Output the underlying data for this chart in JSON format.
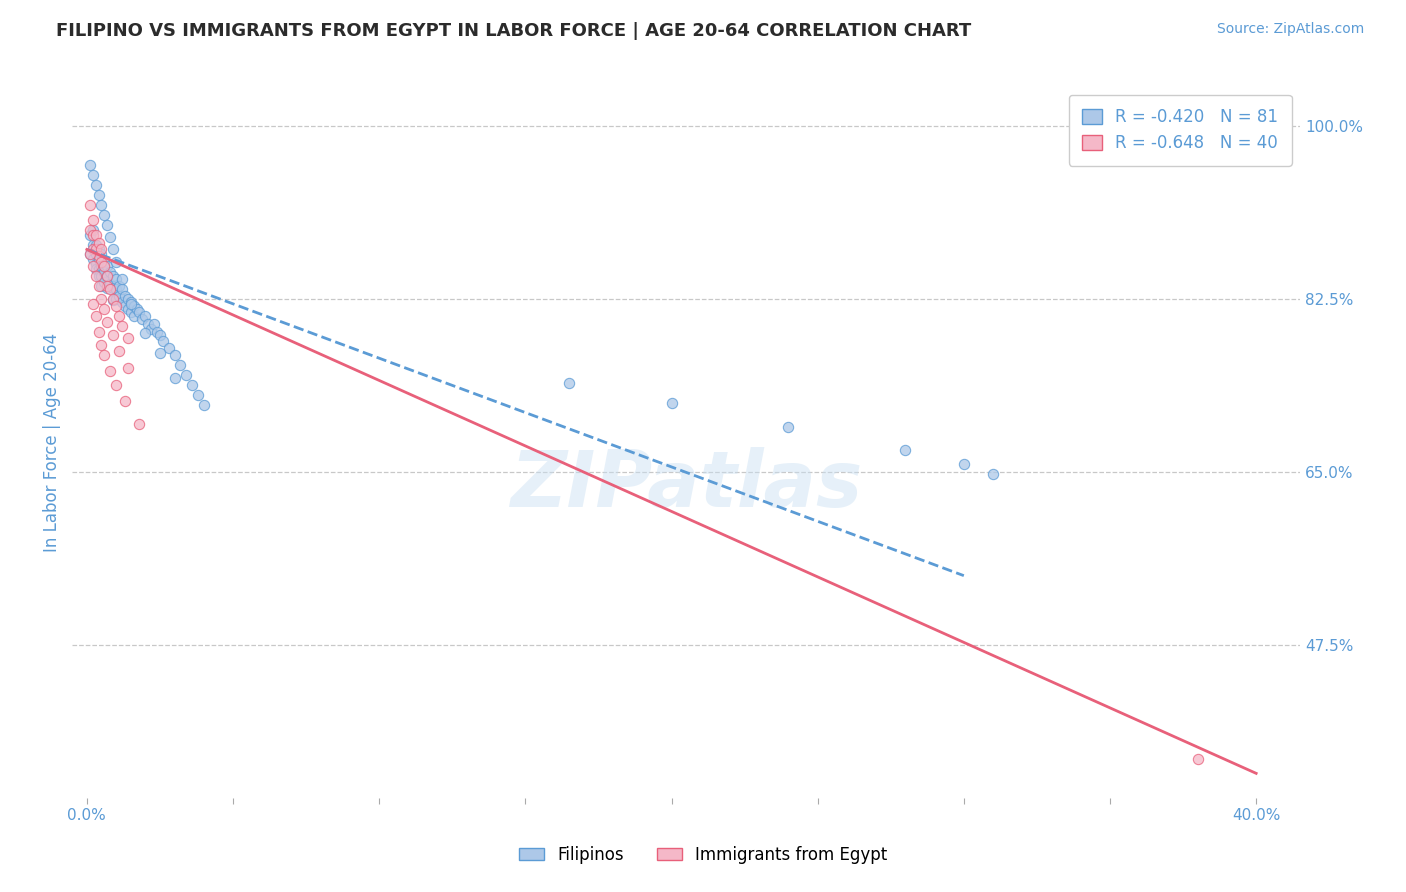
{
  "title": "FILIPINO VS IMMIGRANTS FROM EGYPT IN LABOR FORCE | AGE 20-64 CORRELATION CHART",
  "source": "Source: ZipAtlas.com",
  "ylabel": "In Labor Force | Age 20-64",
  "ylabel_ticks": [
    0.475,
    0.65,
    0.825,
    1.0
  ],
  "ylabel_labels": [
    "47.5%",
    "65.0%",
    "82.5%",
    "100.0%"
  ],
  "xlabel_ticks": [
    0.0,
    0.05,
    0.1,
    0.15,
    0.2,
    0.25,
    0.3,
    0.35,
    0.4
  ],
  "xlabel_labels": [
    "0.0%",
    "",
    "",
    "",
    "",
    "",
    "",
    "",
    "40.0%"
  ],
  "ylim": [
    0.32,
    1.04
  ],
  "xlim": [
    -0.005,
    0.415
  ],
  "watermark": "ZIPatlas",
  "title_color": "#2b2b2b",
  "axis_label_color": "#5b9bd5",
  "tick_color": "#5b9bd5",
  "grid_color": "#c8c8c8",
  "filipinos": {
    "R": -0.42,
    "N": 81,
    "color": "#adc8e8",
    "edge_color": "#5b9bd5",
    "line_color": "#5b9bd5",
    "line_style": "--",
    "label": "Filipinos",
    "line_x0": 0.0,
    "line_y0": 0.875,
    "line_x1": 0.3,
    "line_y1": 0.545,
    "x": [
      0.001,
      0.001,
      0.002,
      0.002,
      0.002,
      0.003,
      0.003,
      0.003,
      0.003,
      0.004,
      0.004,
      0.004,
      0.004,
      0.005,
      0.005,
      0.005,
      0.005,
      0.006,
      0.006,
      0.006,
      0.007,
      0.007,
      0.007,
      0.008,
      0.008,
      0.009,
      0.009,
      0.009,
      0.01,
      0.01,
      0.01,
      0.011,
      0.011,
      0.012,
      0.012,
      0.013,
      0.013,
      0.014,
      0.014,
      0.015,
      0.015,
      0.016,
      0.016,
      0.017,
      0.018,
      0.019,
      0.02,
      0.021,
      0.022,
      0.023,
      0.024,
      0.025,
      0.026,
      0.028,
      0.03,
      0.032,
      0.034,
      0.036,
      0.038,
      0.04,
      0.001,
      0.002,
      0.003,
      0.004,
      0.005,
      0.006,
      0.007,
      0.008,
      0.009,
      0.01,
      0.012,
      0.015,
      0.02,
      0.025,
      0.03,
      0.165,
      0.2,
      0.24,
      0.28,
      0.3,
      0.31
    ],
    "y": [
      0.89,
      0.87,
      0.895,
      0.88,
      0.865,
      0.88,
      0.87,
      0.86,
      0.855,
      0.875,
      0.865,
      0.855,
      0.848,
      0.87,
      0.858,
      0.848,
      0.838,
      0.862,
      0.852,
      0.842,
      0.858,
      0.848,
      0.836,
      0.852,
      0.84,
      0.848,
      0.836,
      0.824,
      0.845,
      0.835,
      0.825,
      0.838,
      0.828,
      0.835,
      0.822,
      0.828,
      0.818,
      0.825,
      0.815,
      0.822,
      0.812,
      0.818,
      0.808,
      0.815,
      0.812,
      0.805,
      0.808,
      0.8,
      0.795,
      0.8,
      0.792,
      0.788,
      0.782,
      0.775,
      0.768,
      0.758,
      0.748,
      0.738,
      0.728,
      0.718,
      0.96,
      0.95,
      0.94,
      0.93,
      0.92,
      0.91,
      0.9,
      0.888,
      0.875,
      0.862,
      0.845,
      0.82,
      0.79,
      0.77,
      0.745,
      0.74,
      0.72,
      0.695,
      0.672,
      0.658,
      0.648
    ]
  },
  "egypt": {
    "R": -0.648,
    "N": 40,
    "color": "#f5b8c8",
    "edge_color": "#e8607a",
    "line_color": "#e8607a",
    "line_style": "-",
    "label": "Immigrants from Egypt",
    "line_x0": 0.0,
    "line_y0": 0.875,
    "line_x1": 0.4,
    "line_y1": 0.345,
    "x": [
      0.001,
      0.001,
      0.002,
      0.002,
      0.002,
      0.003,
      0.003,
      0.004,
      0.004,
      0.005,
      0.005,
      0.006,
      0.007,
      0.007,
      0.008,
      0.009,
      0.01,
      0.011,
      0.012,
      0.014,
      0.001,
      0.002,
      0.003,
      0.004,
      0.005,
      0.006,
      0.007,
      0.009,
      0.011,
      0.014,
      0.002,
      0.003,
      0.004,
      0.005,
      0.006,
      0.008,
      0.01,
      0.013,
      0.018,
      0.38
    ],
    "y": [
      0.92,
      0.895,
      0.905,
      0.89,
      0.875,
      0.89,
      0.875,
      0.882,
      0.868,
      0.875,
      0.862,
      0.858,
      0.848,
      0.838,
      0.835,
      0.825,
      0.818,
      0.808,
      0.798,
      0.785,
      0.87,
      0.858,
      0.848,
      0.838,
      0.825,
      0.815,
      0.802,
      0.788,
      0.772,
      0.755,
      0.82,
      0.808,
      0.792,
      0.778,
      0.768,
      0.752,
      0.738,
      0.722,
      0.698,
      0.36
    ]
  }
}
